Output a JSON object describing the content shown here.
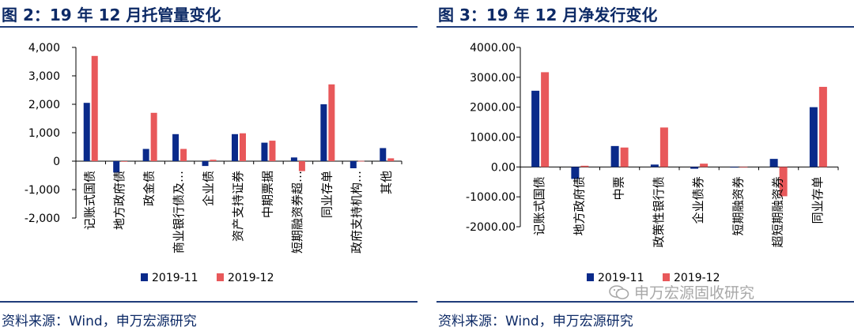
{
  "charts": [
    {
      "title": "图 2：19 年 12 月托管量变化",
      "source": "资料来源：Wind，申万宏源研究",
      "chart_data": {
        "type": "bar",
        "categories": [
          "记账式国债",
          "地方政府债",
          "政金债",
          "商业银行债及…",
          "企业债",
          "资产支持证券",
          "中期票据",
          "短期融资券超…",
          "同业存单",
          "政府支持机构…",
          "其他"
        ],
        "series": [
          {
            "name": "2019-11",
            "color": "#0a2a8a",
            "values": [
              2050,
              -400,
              430,
              950,
              -170,
              950,
              650,
              130,
              2000,
              -250,
              460
            ]
          },
          {
            "name": "2019-12",
            "color": "#e8585a",
            "values": [
              3700,
              0,
              1700,
              430,
              50,
              980,
              720,
              -350,
              2700,
              10,
              100
            ]
          }
        ],
        "yticks": [
          "4,000",
          "3,000",
          "2,000",
          "1,000",
          "0",
          "-1,000",
          "-2,000"
        ],
        "ylim": [
          -2000,
          4000
        ],
        "xlabel": "",
        "ylabel": "",
        "grid": false,
        "legend": "bottom"
      }
    },
    {
      "title": "图 3：19 年 12 月净发行变化",
      "source": "资料来源：Wind，申万宏源研究",
      "chart_data": {
        "type": "bar",
        "categories": [
          "记账式国债",
          "地方政府债",
          "中票",
          "政策性银行债",
          "企业债券",
          "短期融资券",
          "超短期融资券",
          "同业存单"
        ],
        "series": [
          {
            "name": "2019-11",
            "color": "#0a2a8a",
            "values": [
              2550,
              -400,
              700,
              80,
              -60,
              -20,
              270,
              2000
            ]
          },
          {
            "name": "2019-12",
            "color": "#e8585a",
            "values": [
              3170,
              40,
              650,
              1320,
              110,
              -20,
              -980,
              2680
            ]
          }
        ],
        "yticks": [
          "4000.00",
          "3000.00",
          "2000.00",
          "1000.00",
          "0.00",
          "-1000.00",
          "-2000.00"
        ],
        "ylim": [
          -2000,
          4000
        ],
        "xlabel": "",
        "ylabel": "",
        "grid": false,
        "legend": "bottom"
      }
    }
  ],
  "watermark": {
    "text": "申万宏源固收研究",
    "icon": "wechat-icon"
  }
}
